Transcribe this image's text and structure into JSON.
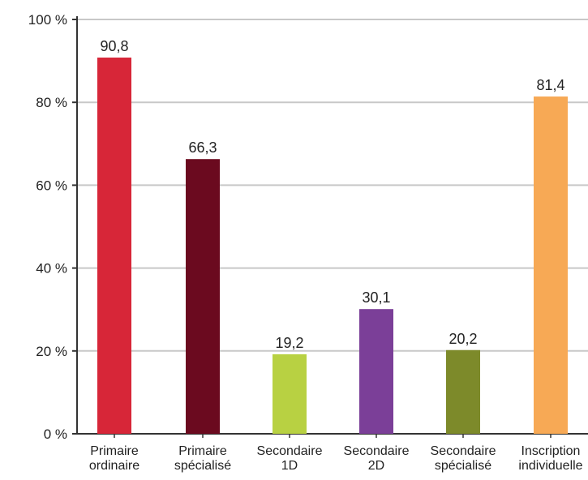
{
  "chart_data": {
    "type": "bar",
    "categories": [
      [
        "Primaire",
        "ordinaire"
      ],
      [
        "Primaire",
        "spécialisé"
      ],
      [
        "Secondaire",
        "1D"
      ],
      [
        "Secondaire",
        "2D"
      ],
      [
        "Secondaire",
        "spécialisé"
      ],
      [
        "Inscription",
        "individuelle"
      ]
    ],
    "values": [
      90.8,
      66.3,
      19.2,
      30.1,
      20.2,
      81.4
    ],
    "value_labels": [
      "90,8",
      "66,3",
      "19,2",
      "30,1",
      "20,2",
      "81,4"
    ],
    "colors": [
      "#d72638",
      "#6b0a1f",
      "#b8d142",
      "#7b3f98",
      "#7d8a2a",
      "#f7a955"
    ],
    "ylim": [
      0,
      100
    ],
    "yticks": [
      0,
      20,
      40,
      60,
      80,
      100
    ],
    "ytick_labels": [
      "0 %",
      "20 %",
      "40 %",
      "60 %",
      "80 %",
      "100 %"
    ],
    "grid": true,
    "title": "",
    "xlabel": "",
    "ylabel": ""
  }
}
